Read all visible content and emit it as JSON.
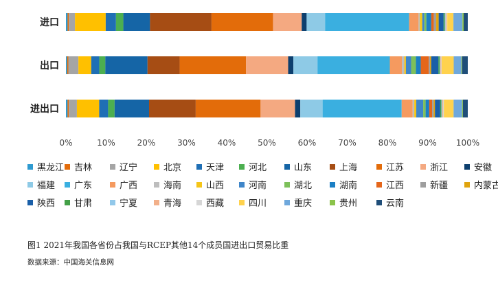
{
  "chart_data": {
    "type": "bar",
    "orientation": "horizontal-stacked-100",
    "categories": [
      "进口",
      "出口",
      "进出口"
    ],
    "xlim": [
      0,
      100
    ],
    "x_ticks": [
      "0%",
      "10%",
      "20%",
      "30%",
      "40%",
      "50%",
      "60%",
      "70%",
      "80%",
      "90%",
      "100%"
    ],
    "series": [
      {
        "name": "黑龙江",
        "color": "#2e9ad0",
        "values": [
          0.4,
          0.3,
          0.4
        ]
      },
      {
        "name": "吉林",
        "color": "#e36c0a",
        "values": [
          0.3,
          0.3,
          0.3
        ]
      },
      {
        "name": "辽宁",
        "color": "#a5a5a5",
        "values": [
          1.5,
          2.5,
          2.0
        ]
      },
      {
        "name": "北京",
        "color": "#ffc000",
        "values": [
          7.5,
          3.2,
          5.5
        ]
      },
      {
        "name": "天津",
        "color": "#1f6fb5",
        "values": [
          2.5,
          2.0,
          2.2
        ]
      },
      {
        "name": "河北",
        "color": "#4caf50",
        "values": [
          1.8,
          1.5,
          1.6
        ]
      },
      {
        "name": "山东",
        "color": "#1565a6",
        "values": [
          6.5,
          10.5,
          8.5
        ]
      },
      {
        "name": "上海",
        "color": "#a64d14",
        "values": [
          15.0,
          8.0,
          11.5
        ]
      },
      {
        "name": "江苏",
        "color": "#e36c0a",
        "values": [
          15.0,
          16.5,
          16.0
        ]
      },
      {
        "name": "浙江",
        "color": "#f4a981",
        "values": [
          7.0,
          10.5,
          8.5
        ]
      },
      {
        "name": "安徽",
        "color": "#0d3f6e",
        "values": [
          1.2,
          1.3,
          1.3
        ]
      },
      {
        "name": "福建",
        "color": "#8ecae6",
        "values": [
          4.5,
          6.0,
          5.5
        ]
      },
      {
        "name": "广东",
        "color": "#3aafe0",
        "values": [
          20.5,
          18.0,
          19.5
        ]
      },
      {
        "name": "广西",
        "color": "#f59a5f",
        "values": [
          2.3,
          3.0,
          2.7
        ]
      },
      {
        "name": "海南",
        "color": "#bdbdbd",
        "values": [
          0.3,
          0.6,
          0.4
        ]
      },
      {
        "name": "山西",
        "color": "#f5c518",
        "values": [
          0.6,
          0.4,
          0.5
        ]
      },
      {
        "name": "河南",
        "color": "#3f86c9",
        "values": [
          0.5,
          1.3,
          1.7
        ]
      },
      {
        "name": "湖北",
        "color": "#7dc05a",
        "values": [
          0.5,
          1.2,
          0.6
        ]
      },
      {
        "name": "湖南",
        "color": "#1b7fc4",
        "values": [
          1.2,
          1.2,
          0.9
        ]
      },
      {
        "name": "江西",
        "color": "#e5661a",
        "values": [
          0.6,
          2.0,
          0.7
        ]
      },
      {
        "name": "新疆",
        "color": "#9e9e9e",
        "values": [
          0.6,
          0.3,
          0.4
        ]
      },
      {
        "name": "内蒙古",
        "color": "#e0a40e",
        "values": [
          0.6,
          0.3,
          0.3
        ]
      },
      {
        "name": "陕西",
        "color": "#1a5fa8",
        "values": [
          1.2,
          1.8,
          1.3
        ]
      },
      {
        "name": "甘肃",
        "color": "#43a047",
        "values": [
          0.3,
          0.3,
          0.3
        ]
      },
      {
        "name": "宁夏",
        "color": "#92c8ea",
        "values": [
          0.2,
          0.2,
          0.2
        ]
      },
      {
        "name": "青海",
        "color": "#f2b08a",
        "values": [
          0.2,
          0.2,
          0.2
        ]
      },
      {
        "name": "西藏",
        "color": "#d6d6d6",
        "values": [
          0.2,
          0.1,
          0.2
        ]
      },
      {
        "name": "四川",
        "color": "#ffd24d",
        "values": [
          1.5,
          3.0,
          2.4
        ]
      },
      {
        "name": "重庆",
        "color": "#6fa8dc",
        "values": [
          2.2,
          1.9,
          2.1
        ]
      },
      {
        "name": "贵州",
        "color": "#8bc34a",
        "values": [
          0.3,
          0.2,
          0.2
        ]
      },
      {
        "name": "云南",
        "color": "#1f4e79",
        "values": [
          1.0,
          1.4,
          1.2
        ]
      }
    ]
  },
  "caption": "图1  2021年我国各省份占我国与RCEP其他14个成员国进出口贸易比重",
  "source": "数据来源：中国海关信息网"
}
